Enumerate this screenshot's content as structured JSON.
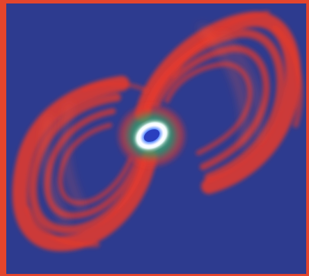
{
  "image": {
    "subject": "nebula-icon",
    "colors": {
      "frame": "#e4452c",
      "background": "#2d3b8f",
      "outer_lobes": "#e8382a",
      "inner_glow": "#3fae6a",
      "core_ring": "#ffffff",
      "core_center": "#7fb6ff"
    }
  }
}
